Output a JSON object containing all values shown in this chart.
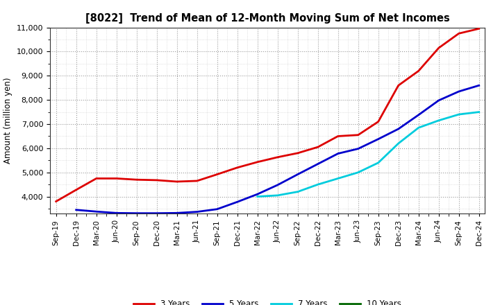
{
  "title": "[8022]  Trend of Mean of 12-Month Moving Sum of Net Incomes",
  "ylabel": "Amount (million yen)",
  "ylim": [
    3300,
    11000
  ],
  "yticks": [
    4000,
    5000,
    6000,
    7000,
    8000,
    9000,
    10000,
    11000
  ],
  "background_color": "#ffffff",
  "grid_major_color": "#999999",
  "grid_minor_color": "#cccccc",
  "x_labels": [
    "Sep-19",
    "Dec-19",
    "Mar-20",
    "Jun-20",
    "Sep-20",
    "Dec-20",
    "Mar-21",
    "Jun-21",
    "Sep-21",
    "Dec-21",
    "Mar-22",
    "Jun-22",
    "Sep-22",
    "Dec-22",
    "Mar-23",
    "Jun-23",
    "Sep-23",
    "Dec-23",
    "Mar-24",
    "Jun-24",
    "Sep-24",
    "Dec-24"
  ],
  "series": {
    "3 Years": {
      "color": "#dd0000",
      "data_x": [
        0,
        1,
        2,
        3,
        4,
        5,
        6,
        7,
        8,
        9,
        10,
        11,
        12,
        13,
        14,
        15,
        16,
        17,
        18,
        19,
        20,
        21
      ],
      "data_y": [
        3800,
        4280,
        4750,
        4750,
        4700,
        4680,
        4620,
        4650,
        4920,
        5200,
        5430,
        5630,
        5800,
        6050,
        6500,
        6550,
        7100,
        8600,
        9200,
        10150,
        10750,
        10950
      ]
    },
    "5 Years": {
      "color": "#0000cc",
      "data_x": [
        1,
        2,
        3,
        4,
        5,
        6,
        7,
        8,
        9,
        10,
        11,
        12,
        13,
        14,
        15,
        16,
        17,
        18,
        19,
        20,
        21
      ],
      "data_y": [
        3450,
        3380,
        3320,
        3310,
        3310,
        3320,
        3370,
        3480,
        3780,
        4100,
        4480,
        4920,
        5350,
        5780,
        5980,
        6380,
        6800,
        7380,
        7980,
        8350,
        8600
      ]
    },
    "7 Years": {
      "color": "#00ccdd",
      "data_x": [
        10,
        11,
        12,
        13,
        14,
        15,
        16,
        17,
        18,
        19,
        20,
        21
      ],
      "data_y": [
        4000,
        4050,
        4200,
        4500,
        4750,
        5000,
        5400,
        6200,
        6850,
        7150,
        7400,
        7500
      ]
    },
    "10 Years": {
      "color": "#006600",
      "data_x": [],
      "data_y": []
    }
  },
  "legend_labels": [
    "3 Years",
    "5 Years",
    "7 Years",
    "10 Years"
  ],
  "legend_colors": [
    "#dd0000",
    "#0000cc",
    "#00ccdd",
    "#006600"
  ]
}
